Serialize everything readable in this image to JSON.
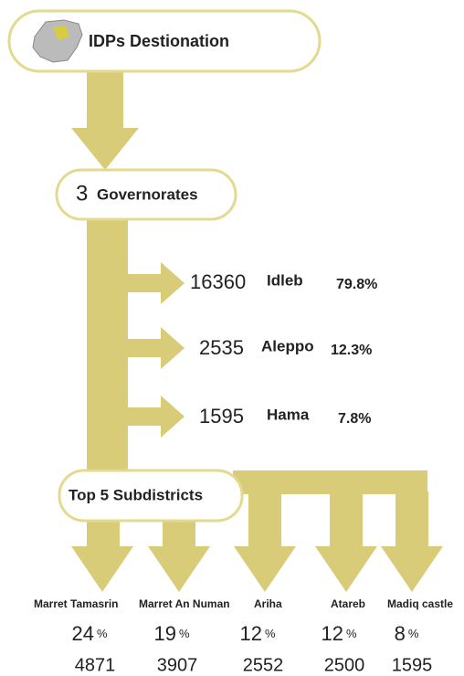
{
  "header": {
    "title": "IDPs Destionation"
  },
  "governorates": {
    "count": "3",
    "label": "Governorates",
    "rows": [
      {
        "value": "16360",
        "name": "Idleb",
        "percent": "79.8%"
      },
      {
        "value": "2535",
        "name": "Aleppo",
        "percent": "12.3%"
      },
      {
        "value": "1595",
        "name": "Hama",
        "percent": "7.8%"
      }
    ]
  },
  "subdistricts": {
    "title": "Top 5 Subdistricts",
    "items": [
      {
        "name": "Marret Tamasrin",
        "percent": "24",
        "unit": "%",
        "count": "4871"
      },
      {
        "name": "Marret An Numan",
        "percent": "19",
        "unit": "%",
        "count": "3907"
      },
      {
        "name": "Ariha",
        "percent": "12",
        "unit": "%",
        "count": "2552"
      },
      {
        "name": "Atareb",
        "percent": "12",
        "unit": "%",
        "count": "2500"
      },
      {
        "name": "Madiq castle",
        "percent": "8",
        "unit": "%",
        "count": "1595"
      }
    ]
  }
}
